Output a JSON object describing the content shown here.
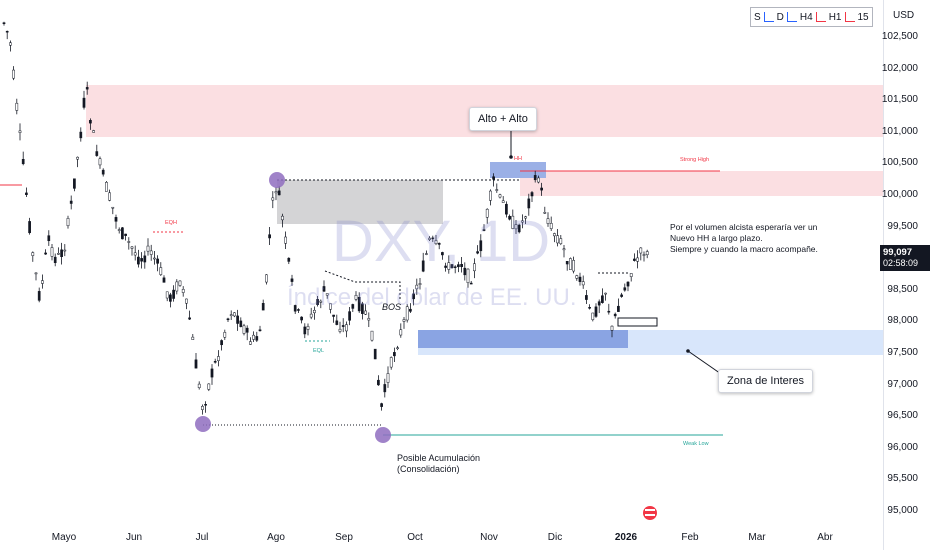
{
  "chart_data": {
    "type": "candlestick",
    "symbol": "DXY",
    "interval": "1D",
    "watermark_title": "DXY, 1D",
    "watermark_subtitle": "Índice del dólar de EE. UU.",
    "currency": "USD",
    "timeframes": [
      "S",
      "D",
      "H4",
      "H1",
      "15"
    ],
    "y_ticks": [
      "102,500",
      "102,000",
      "101,500",
      "101,000",
      "100,500",
      "100,000",
      "99,500",
      "99,000",
      "98,500",
      "98,000",
      "97,500",
      "97,000",
      "96,500",
      "96,000",
      "95,500",
      "95,000"
    ],
    "x_ticks": [
      {
        "label": "Mayo",
        "bold": false
      },
      {
        "label": "Jun",
        "bold": false
      },
      {
        "label": "Jul",
        "bold": false
      },
      {
        "label": "Ago",
        "bold": false
      },
      {
        "label": "Sep",
        "bold": false
      },
      {
        "label": "Oct",
        "bold": false
      },
      {
        "label": "Nov",
        "bold": false
      },
      {
        "label": "Dic",
        "bold": false
      },
      {
        "label": "2026",
        "bold": true
      },
      {
        "label": "Feb",
        "bold": false
      },
      {
        "label": "Mar",
        "bold": false
      },
      {
        "label": "Abr",
        "bold": false
      }
    ],
    "ylim": [
      94.9,
      102.9
    ],
    "last_price": "99,097",
    "countdown": "02:58:09",
    "annotations": {
      "alto_alto": "Alto + Alto",
      "zona_interes": "Zona de Interes",
      "acumulacion_1": "Posible Acumulación",
      "acumulacion_2": "(Consolidación)",
      "bos": "BOS",
      "eqh": "EQH",
      "eql": "EQL",
      "strong_high": "Strong High",
      "weak_low": "Weak Low",
      "hh": "HH",
      "note_1": "Por el volumen alcista esperaría ver un",
      "note_2": "Nuevo HH a largo plazo.",
      "note_3": "Siempre y cuando la macro acompañe."
    },
    "colors": {
      "up": "#131722",
      "down": "#131722",
      "up_body": "#ffffff",
      "down_body": "#131722",
      "supply_zone": "#f9d7da",
      "demand_zone": "#d6e4f9",
      "demand_strong": "#7f9be0",
      "pivot": "#8f6dbf",
      "grey_zone": "#cfcfd1",
      "weak_low_line": "#26a69a",
      "strong_high_line": "#f23645"
    },
    "series": [
      {
        "name": "DXY",
        "values": []
      }
    ]
  }
}
